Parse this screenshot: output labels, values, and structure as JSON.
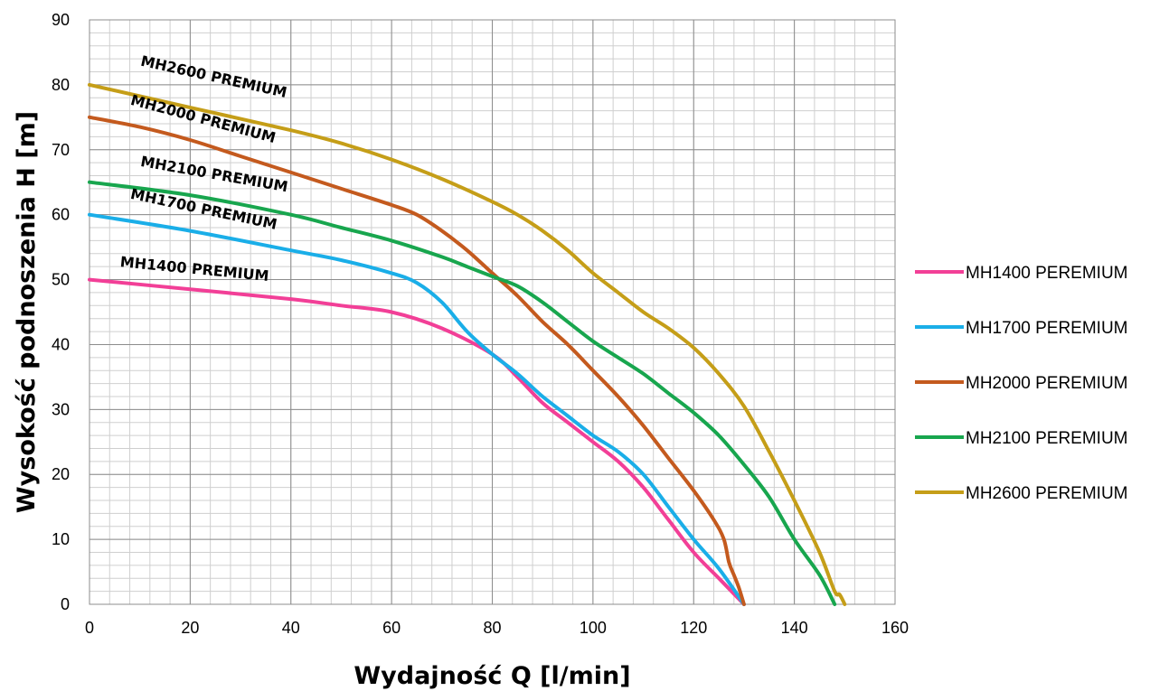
{
  "chart_data": {
    "type": "line",
    "xlabel": "Wydajność Q [l/min]",
    "ylabel": "Wysokość podnoszenia H [m]",
    "xlim": [
      0,
      160
    ],
    "ylim": [
      0,
      90
    ],
    "x_ticks": [
      0,
      20,
      40,
      60,
      80,
      100,
      120,
      140,
      160
    ],
    "y_ticks": [
      0,
      10,
      20,
      30,
      40,
      50,
      60,
      70,
      80,
      90
    ],
    "grid": "major and minor",
    "legend_position": "right",
    "series": [
      {
        "name": "MH1400 PEREMIUM",
        "label": "MH1400 PREMIUM",
        "color": "#f23f97",
        "points": [
          [
            0,
            50
          ],
          [
            20,
            48.5
          ],
          [
            40,
            47
          ],
          [
            50,
            46
          ],
          [
            60,
            45
          ],
          [
            70,
            42.5
          ],
          [
            80,
            38.5
          ],
          [
            85,
            35
          ],
          [
            90,
            31
          ],
          [
            95,
            28
          ],
          [
            100,
            25
          ],
          [
            105,
            22
          ],
          [
            110,
            18
          ],
          [
            115,
            13
          ],
          [
            120,
            8
          ],
          [
            125,
            4
          ],
          [
            130,
            0
          ]
        ]
      },
      {
        "name": "MH1700 PEREMIUM",
        "label": "MH1700 PREMIUM",
        "color": "#1aaee8",
        "points": [
          [
            0,
            60
          ],
          [
            20,
            57.5
          ],
          [
            40,
            54.5
          ],
          [
            50,
            53
          ],
          [
            60,
            51
          ],
          [
            65,
            49.5
          ],
          [
            70,
            46.5
          ],
          [
            75,
            42
          ],
          [
            80,
            38.5
          ],
          [
            85,
            35.5
          ],
          [
            90,
            32
          ],
          [
            95,
            29
          ],
          [
            100,
            26
          ],
          [
            105,
            23.5
          ],
          [
            110,
            20
          ],
          [
            115,
            15
          ],
          [
            120,
            10
          ],
          [
            125,
            5.5
          ],
          [
            130,
            0
          ]
        ]
      },
      {
        "name": "MH2000 PEREMIUM",
        "label": "MH2000 PREMIUM",
        "color": "#c45a1e",
        "points": [
          [
            0,
            75
          ],
          [
            10,
            73.5
          ],
          [
            20,
            71.5
          ],
          [
            30,
            69
          ],
          [
            40,
            66.5
          ],
          [
            50,
            64
          ],
          [
            60,
            61.5
          ],
          [
            65,
            60
          ],
          [
            70,
            57.5
          ],
          [
            75,
            54.5
          ],
          [
            80,
            51
          ],
          [
            85,
            47.5
          ],
          [
            90,
            43.5
          ],
          [
            95,
            40
          ],
          [
            100,
            36
          ],
          [
            105,
            32
          ],
          [
            110,
            27.5
          ],
          [
            115,
            22.5
          ],
          [
            120,
            17.5
          ],
          [
            124,
            13
          ],
          [
            126,
            10
          ],
          [
            127,
            6.5
          ],
          [
            128,
            4.5
          ],
          [
            129,
            2.5
          ],
          [
            130,
            0
          ]
        ]
      },
      {
        "name": "MH2100 PEREMIUM",
        "label": "MH2100 PREMIUM",
        "color": "#18a64e",
        "points": [
          [
            0,
            65
          ],
          [
            20,
            63
          ],
          [
            40,
            60
          ],
          [
            50,
            58
          ],
          [
            60,
            56
          ],
          [
            70,
            53.5
          ],
          [
            75,
            52
          ],
          [
            80,
            50.5
          ],
          [
            85,
            49
          ],
          [
            90,
            46.5
          ],
          [
            95,
            43.5
          ],
          [
            100,
            40.5
          ],
          [
            105,
            38
          ],
          [
            110,
            35.5
          ],
          [
            115,
            32.5
          ],
          [
            120,
            29.5
          ],
          [
            125,
            26
          ],
          [
            130,
            21.5
          ],
          [
            135,
            16.5
          ],
          [
            140,
            10
          ],
          [
            145,
            4.5
          ],
          [
            148,
            0
          ]
        ]
      },
      {
        "name": "MH2600 PEREMIUM",
        "label": "MH2600 PREMIUM",
        "color": "#c59e18",
        "points": [
          [
            0,
            80
          ],
          [
            20,
            76.5
          ],
          [
            40,
            73
          ],
          [
            50,
            71
          ],
          [
            60,
            68.5
          ],
          [
            70,
            65.5
          ],
          [
            80,
            62
          ],
          [
            85,
            60
          ],
          [
            90,
            57.5
          ],
          [
            95,
            54.5
          ],
          [
            100,
            51
          ],
          [
            105,
            48
          ],
          [
            110,
            45
          ],
          [
            115,
            42.5
          ],
          [
            120,
            39.5
          ],
          [
            125,
            35.5
          ],
          [
            130,
            30.5
          ],
          [
            135,
            23.5
          ],
          [
            140,
            16
          ],
          [
            145,
            8
          ],
          [
            148,
            2
          ],
          [
            149,
            1.5
          ],
          [
            150,
            0
          ]
        ]
      }
    ],
    "curve_labels": [
      {
        "text": "MH2600 PREMIUM",
        "x": 10,
        "y": 83,
        "angle": 12.5
      },
      {
        "text": "MH2000 PREMIUM",
        "x": 8,
        "y": 77,
        "angle": 15
      },
      {
        "text": "MH2100 PREMIUM",
        "x": 10,
        "y": 67.5,
        "angle": 10
      },
      {
        "text": "MH1700 PREMIUM",
        "x": 8,
        "y": 62.5,
        "angle": 12
      },
      {
        "text": "MH1400 PREMIUM",
        "x": 6,
        "y": 52,
        "angle": 5.5
      }
    ]
  }
}
